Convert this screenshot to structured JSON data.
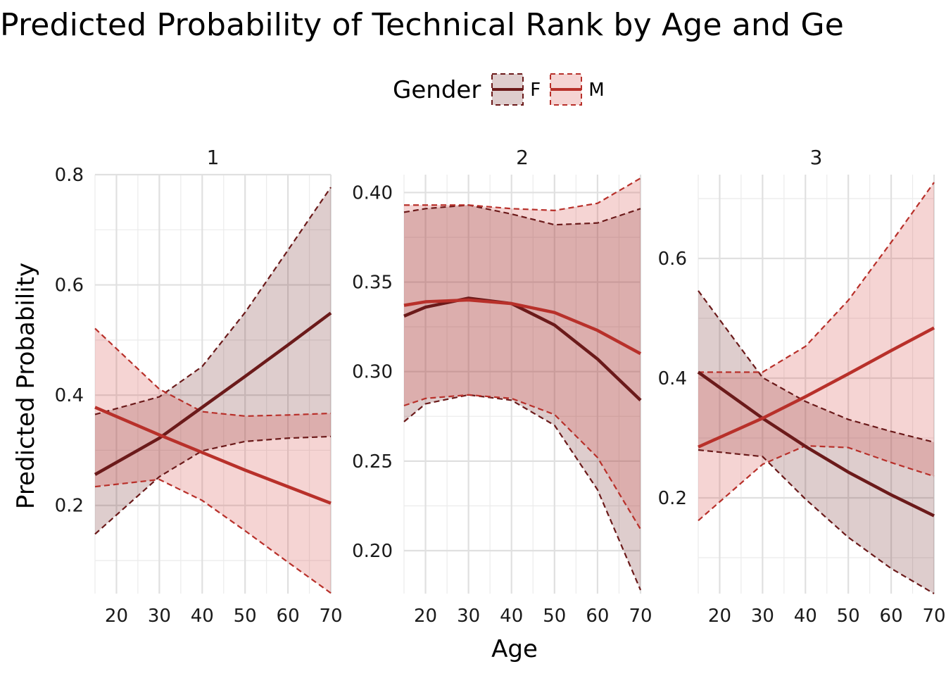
{
  "chart_data": {
    "type": "line",
    "title": "Predicted Probability of Technical Rank by Age and Ge",
    "xlabel": "Age",
    "ylabel": "Predicted Probability",
    "legend": {
      "title": "Gender",
      "position": "top",
      "entries": [
        {
          "name": "F",
          "color": "#6b1a1a"
        },
        {
          "name": "M",
          "color": "#b8302a"
        }
      ]
    },
    "grid": true,
    "x_ticks": [
      20,
      30,
      40,
      50,
      60,
      70
    ],
    "panels": [
      {
        "label": "1",
        "xlim": [
          15,
          70
        ],
        "ylim": [
          0.04,
          0.8
        ],
        "y_ticks": [
          0.2,
          0.4,
          0.6,
          0.8
        ],
        "y_tick_labels": [
          "0.2",
          "0.4",
          "0.6",
          "0.8"
        ],
        "series": [
          {
            "name": "F",
            "x": [
              15,
              30,
              40,
              50,
              60,
              70
            ],
            "y": [
              0.256,
              0.322,
              0.378,
              0.434,
              0.491,
              0.549
            ],
            "lower": [
              0.148,
              0.252,
              0.299,
              0.316,
              0.322,
              0.325
            ],
            "upper": [
              0.365,
              0.397,
              0.452,
              0.55,
              0.663,
              0.777
            ]
          },
          {
            "name": "M",
            "x": [
              15,
              30,
              40,
              50,
              60,
              70
            ],
            "y": [
              0.378,
              0.328,
              0.296,
              0.264,
              0.234,
              0.204
            ],
            "lower": [
              0.234,
              0.247,
              0.209,
              0.154,
              0.097,
              0.041
            ],
            "upper": [
              0.521,
              0.411,
              0.37,
              0.362,
              0.364,
              0.367
            ]
          }
        ]
      },
      {
        "label": "2",
        "xlim": [
          15,
          70
        ],
        "ylim": [
          0.176,
          0.41
        ],
        "y_ticks": [
          0.2,
          0.25,
          0.3,
          0.35,
          0.4
        ],
        "y_tick_labels": [
          "0.20",
          "0.25",
          "0.30",
          "0.35",
          "0.40"
        ],
        "series": [
          {
            "name": "F",
            "x": [
              15,
              20,
              30,
              40,
              50,
              60,
              70
            ],
            "y": [
              0.331,
              0.336,
              0.341,
              0.338,
              0.326,
              0.307,
              0.284
            ],
            "lower": [
              0.272,
              0.282,
              0.287,
              0.284,
              0.27,
              0.234,
              0.178
            ],
            "upper": [
              0.389,
              0.391,
              0.393,
              0.388,
              0.382,
              0.383,
              0.391
            ]
          },
          {
            "name": "M",
            "x": [
              15,
              20,
              30,
              40,
              50,
              60,
              70
            ],
            "y": [
              0.337,
              0.339,
              0.34,
              0.338,
              0.333,
              0.323,
              0.31
            ],
            "lower": [
              0.281,
              0.285,
              0.287,
              0.285,
              0.276,
              0.252,
              0.212
            ],
            "upper": [
              0.393,
              0.393,
              0.393,
              0.391,
              0.39,
              0.394,
              0.408
            ]
          }
        ]
      },
      {
        "label": "3",
        "xlim": [
          15,
          70
        ],
        "ylim": [
          0.04,
          0.74
        ],
        "y_ticks": [
          0.2,
          0.4,
          0.6
        ],
        "y_tick_labels": [
          "0.2",
          "0.4",
          "0.6"
        ],
        "series": [
          {
            "name": "F",
            "x": [
              15,
              30,
              40,
              50,
              60,
              70
            ],
            "y": [
              0.41,
              0.333,
              0.286,
              0.243,
              0.205,
              0.17
            ],
            "lower": [
              0.28,
              0.269,
              0.198,
              0.134,
              0.082,
              0.04
            ],
            "upper": [
              0.546,
              0.401,
              0.361,
              0.331,
              0.311,
              0.293
            ]
          },
          {
            "name": "M",
            "x": [
              15,
              30,
              40,
              50,
              60,
              70
            ],
            "y": [
              0.285,
              0.333,
              0.369,
              0.407,
              0.446,
              0.484
            ],
            "lower": [
              0.162,
              0.256,
              0.287,
              0.284,
              0.259,
              0.236
            ],
            "upper": [
              0.41,
              0.41,
              0.453,
              0.53,
              0.627,
              0.727
            ]
          }
        ]
      }
    ]
  }
}
